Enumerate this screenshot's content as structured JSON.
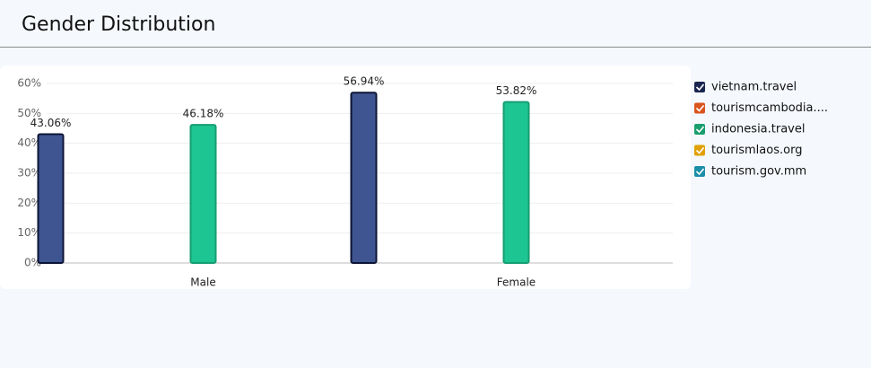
{
  "chart_data": {
    "type": "bar",
    "title": "Gender Distribution",
    "categories": [
      "Male",
      "Female"
    ],
    "series": [
      {
        "name": "vietnam.travel",
        "color": "#3f5592",
        "border": "#0d1535",
        "legend_color": "#1a2550",
        "values": [
          43.06,
          56.94
        ],
        "value_labels": [
          "43.06%",
          "56.94%"
        ]
      },
      {
        "name": "tourismcambodia....",
        "color": "#d9541e",
        "border": "#a53c12",
        "legend_color": "#d9541e",
        "values": [
          null,
          null
        ]
      },
      {
        "name": "indonesia.travel",
        "color": "#1dc592",
        "border": "#169e72",
        "legend_color": "#1a9e6e",
        "values": [
          46.18,
          53.82
        ],
        "value_labels": [
          "46.18%",
          "53.82%"
        ]
      },
      {
        "name": "tourismlaos.org",
        "color": "#e0a000",
        "border": "#b07d00",
        "legend_color": "#e0a000",
        "values": [
          null,
          null
        ]
      },
      {
        "name": "tourism.gov.mm",
        "color": "#1b8fa8",
        "border": "#136c80",
        "legend_color": "#1b8fa8",
        "values": [
          null,
          null
        ]
      }
    ],
    "ylim": [
      0,
      60
    ],
    "yticks": [
      {
        "value": 0,
        "label": "0%"
      },
      {
        "value": 10,
        "label": "10%"
      },
      {
        "value": 20,
        "label": "20%"
      },
      {
        "value": 30,
        "label": "30%"
      },
      {
        "value": 40,
        "label": "40%"
      },
      {
        "value": 50,
        "label": "50%"
      },
      {
        "value": 60,
        "label": "60%"
      }
    ],
    "grid": true,
    "legend": "right"
  }
}
